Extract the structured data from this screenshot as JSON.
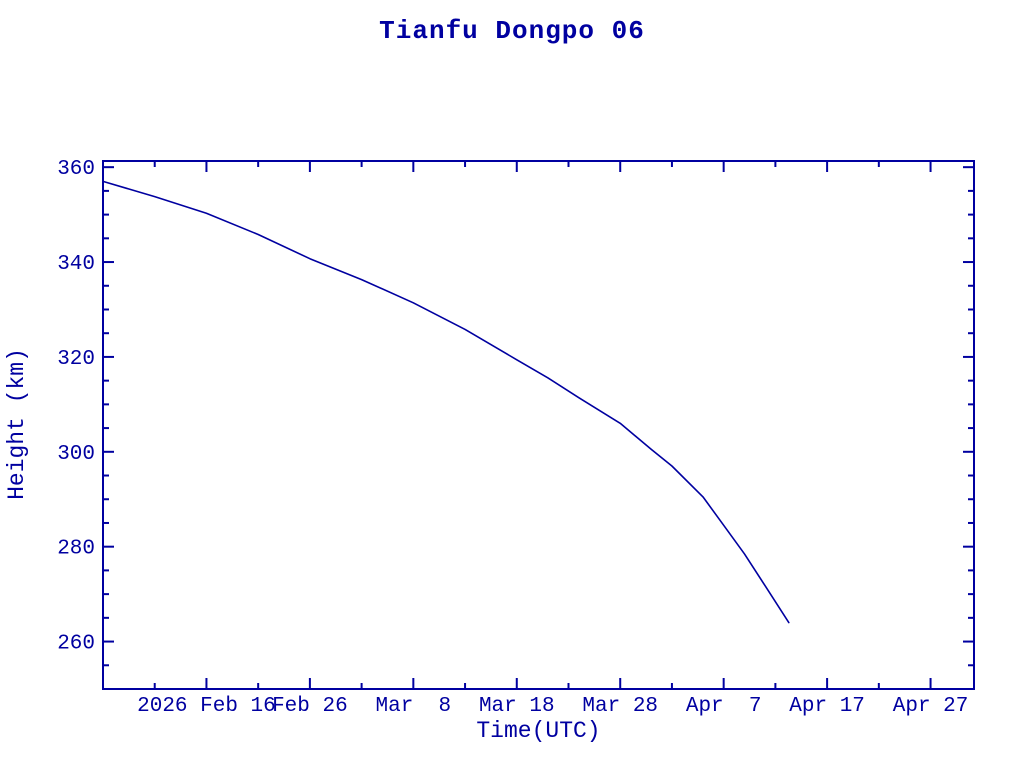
{
  "chart_data": {
    "type": "line",
    "title": "Tianfu Dongpo 06",
    "xlabel": "Time(UTC)",
    "ylabel": "Height (km)",
    "accent_color": "#0000a0",
    "background_color": "#ffffff",
    "grid": false,
    "frame": "closed box with inward ticks on all four sides",
    "x_unit": "days since 2026-02-06",
    "xlim": [
      0,
      84.2
    ],
    "ylim": [
      250,
      361.3
    ],
    "x_major_ticks": [
      {
        "day": 10,
        "label": "2026 Feb 16"
      },
      {
        "day": 20,
        "label": "Feb 26"
      },
      {
        "day": 30,
        "label": "Mar  8"
      },
      {
        "day": 40,
        "label": "Mar 18"
      },
      {
        "day": 50,
        "label": "Mar 28"
      },
      {
        "day": 60,
        "label": "Apr  7"
      },
      {
        "day": 70,
        "label": "Apr 17"
      },
      {
        "day": 80,
        "label": "Apr 27"
      }
    ],
    "x_minor_tick_days": [
      5,
      15,
      25,
      35,
      45,
      55,
      65,
      75
    ],
    "y_major_ticks": [
      260,
      280,
      300,
      320,
      340,
      360
    ],
    "y_minor_step": 5,
    "series": [
      {
        "name": "orbit-height",
        "color": "#0000a0",
        "points": [
          {
            "date": "2026-02-06",
            "day": 0,
            "height_km": 357.0
          },
          {
            "date": "2026-02-11",
            "day": 5,
            "height_km": 353.8
          },
          {
            "date": "2026-02-16",
            "day": 10,
            "height_km": 350.3
          },
          {
            "date": "2026-02-21",
            "day": 15,
            "height_km": 345.8
          },
          {
            "date": "2026-02-26",
            "day": 20,
            "height_km": 340.7
          },
          {
            "date": "2026-03-03",
            "day": 25,
            "height_km": 336.3
          },
          {
            "date": "2026-03-08",
            "day": 30,
            "height_km": 331.4
          },
          {
            "date": "2026-03-13",
            "day": 35,
            "height_km": 325.8
          },
          {
            "date": "2026-03-18",
            "day": 40,
            "height_km": 319.4
          },
          {
            "date": "2026-03-21",
            "day": 43,
            "height_km": 315.6
          },
          {
            "date": "2026-03-24",
            "day": 46,
            "height_km": 311.4
          },
          {
            "date": "2026-03-28",
            "day": 50,
            "height_km": 306.0
          },
          {
            "date": "2026-03-31",
            "day": 53,
            "height_km": 300.5
          },
          {
            "date": "2026-04-02",
            "day": 55,
            "height_km": 297.0
          },
          {
            "date": "2026-04-05",
            "day": 58,
            "height_km": 290.5
          },
          {
            "date": "2026-04-07",
            "day": 60,
            "height_km": 284.5
          },
          {
            "date": "2026-04-09",
            "day": 62,
            "height_km": 278.5
          },
          {
            "date": "2026-04-11",
            "day": 64,
            "height_km": 271.8
          },
          {
            "date": "2026-04-13",
            "day": 66.3,
            "height_km": 264.0
          }
        ]
      }
    ]
  }
}
